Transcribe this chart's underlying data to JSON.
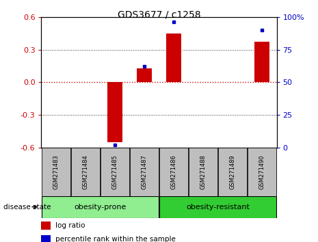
{
  "title": "GDS3677 / c1258",
  "samples": [
    "GSM271483",
    "GSM271484",
    "GSM271485",
    "GSM271487",
    "GSM271486",
    "GSM271488",
    "GSM271489",
    "GSM271490"
  ],
  "log_ratio": [
    0.0,
    0.0,
    -0.55,
    0.13,
    0.45,
    0.0,
    0.0,
    0.37
  ],
  "percentile_rank": [
    null,
    null,
    2,
    62,
    96,
    null,
    null,
    90
  ],
  "ylim_left": [
    -0.6,
    0.6
  ],
  "ylim_right": [
    0,
    100
  ],
  "yticks_left": [
    -0.6,
    -0.3,
    0.0,
    0.3,
    0.6
  ],
  "yticks_right": [
    0,
    25,
    50,
    75,
    100
  ],
  "groups": [
    {
      "label": "obesity-prone",
      "indices": [
        0,
        1,
        2,
        3
      ],
      "color": "#90EE90"
    },
    {
      "label": "obesity-resistant",
      "indices": [
        4,
        5,
        6,
        7
      ],
      "color": "#32CD32"
    }
  ],
  "disease_state_label": "disease state",
  "bar_color": "#CC0000",
  "dot_color": "#0000CC",
  "zero_line_color": "#CC0000",
  "grid_color": "#333333",
  "sample_box_color": "#BEBEBE",
  "legend_items": [
    "log ratio",
    "percentile rank within the sample"
  ]
}
